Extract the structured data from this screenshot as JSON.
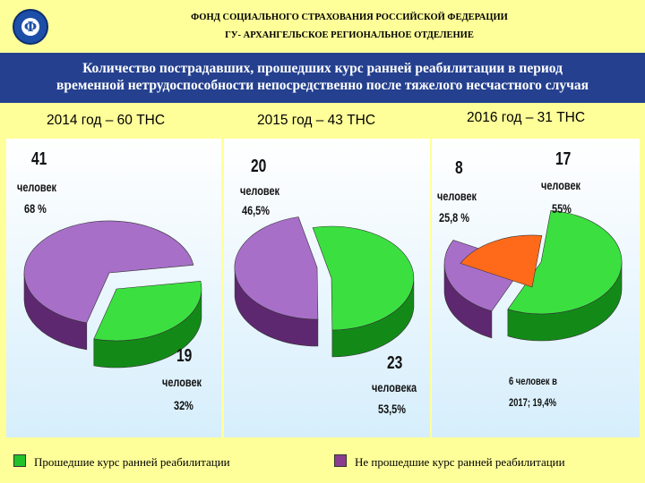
{
  "header": {
    "org_line1": "ФОНД СОЦИАЛЬНОГО  СТРАХОВАНИЯ РОССИЙСКОЙ ФЕДЕРАЦИИ",
    "org_line2": "ГУ- АРХАНГЕЛЬСКОЕ РЕГИОНАЛЬНОЕ ОТДЕЛЕНИЕ",
    "logo_icon": "fss-logo-icon"
  },
  "banner": {
    "line1": "Количество пострадавших, прошедших курс ранней реабилитации в период",
    "line2": "временной нетрудоспособности непосредственно после тяжелого несчастного случая"
  },
  "legend": {
    "green_label": "Прошедшие курс ранней реабилитации",
    "purple_label": "Не прошедшие курс ранней реабилитации",
    "green_color": "#22c22a",
    "purple_color": "#8a3d8e"
  },
  "chart_data": [
    {
      "type": "pie",
      "title": "2014 год – 60 ТНС",
      "categories": [
        "Прошедшие курс ранней реабилитации",
        "Не прошедшие курс ранней реабилитации"
      ],
      "values": [
        19,
        41
      ],
      "labels": [
        {
          "num": "19",
          "word": "человек",
          "pct": "32%"
        },
        {
          "num": "41",
          "word": "человек",
          "pct": "68 %"
        }
      ]
    },
    {
      "type": "pie",
      "title": "2015 год – 43 ТНС",
      "categories": [
        "Прошедшие курс ранней реабилитации",
        "Не прошедшие курс ранней реабилитации"
      ],
      "values": [
        23,
        20
      ],
      "labels": [
        {
          "num": "23",
          "word": "человека",
          "pct": "53,5%"
        },
        {
          "num": "20",
          "word": "человек",
          "pct": "46,5%"
        }
      ]
    },
    {
      "type": "pie",
      "title": "2016 год – 31 ТНС",
      "categories": [
        "Прошедшие курс ранней реабилитации",
        "Не прошедшие курс ранней реабилитации",
        ""
      ],
      "values": [
        17,
        8,
        6
      ],
      "labels": [
        {
          "num": "17",
          "word": "человек",
          "pct": "55%"
        },
        {
          "num": "8",
          "word": "человек",
          "pct": "25,8 %"
        },
        {
          "line1": "6 человек  в",
          "line2": "2017; 19,4%"
        }
      ]
    }
  ]
}
